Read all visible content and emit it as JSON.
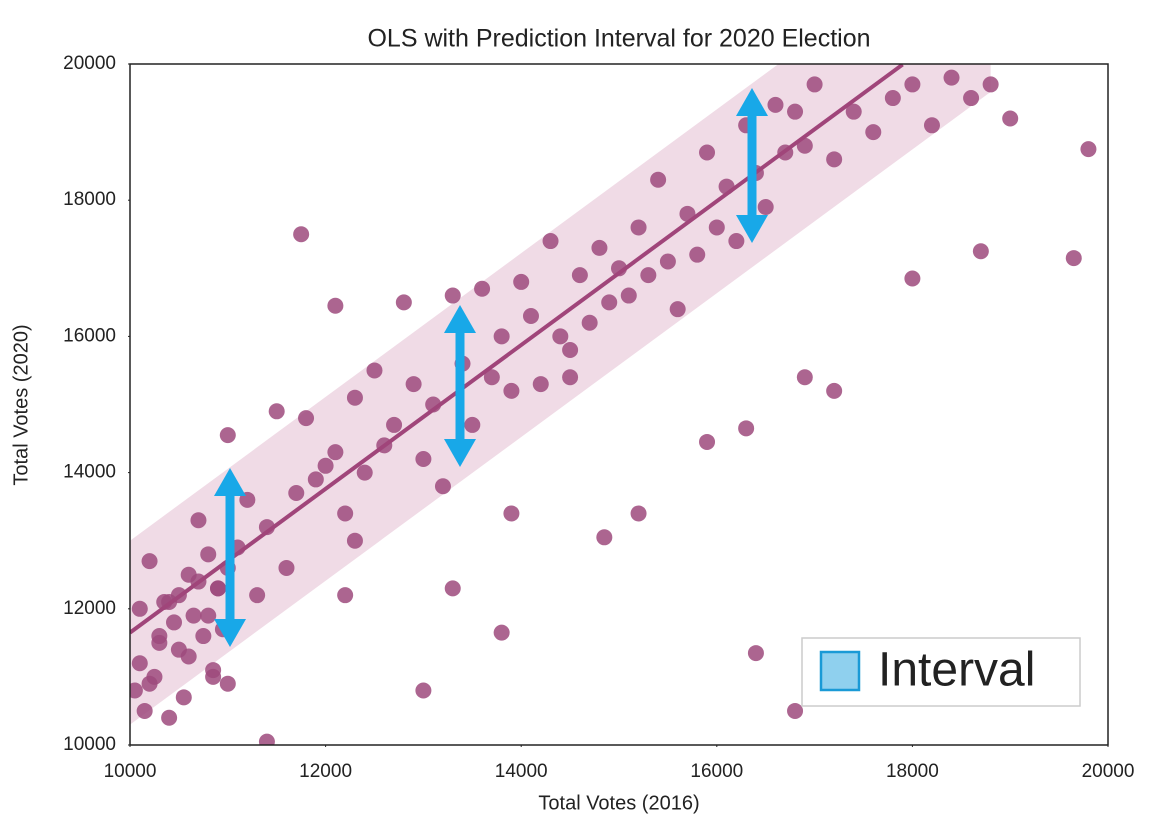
{
  "chart_data": {
    "type": "scatter",
    "title": "OLS with Prediction Interval for 2020 Election",
    "x_label": "Total Votes (2016)",
    "y_label": "Total Votes (2020)",
    "xlim": [
      10000,
      20000
    ],
    "ylim": [
      10000,
      20000
    ],
    "xticks": [
      10000,
      12000,
      14000,
      16000,
      18000,
      20000
    ],
    "yticks": [
      10000,
      12000,
      14000,
      16000,
      18000,
      20000
    ],
    "point_color": "#9e4a7c",
    "x": [
      10050,
      10100,
      10150,
      10200,
      10250,
      10300,
      10350,
      10400,
      10450,
      10500,
      10550,
      10600,
      10650,
      10700,
      10750,
      10800,
      10850,
      10900,
      10950,
      11000,
      10100,
      10200,
      10300,
      10400,
      10500,
      10600,
      10700,
      10800,
      10900,
      11000,
      11100,
      11200,
      11300,
      11400,
      11500,
      11600,
      11700,
      11800,
      11900,
      12000,
      12100,
      12200,
      12300,
      12400,
      12500,
      12600,
      12700,
      12800,
      12900,
      13000,
      13100,
      13200,
      13300,
      13400,
      13500,
      13600,
      13700,
      13800,
      13900,
      14000,
      14100,
      14200,
      14300,
      14400,
      14500,
      14600,
      14700,
      14800,
      14900,
      15000,
      15100,
      15200,
      15300,
      15400,
      15500,
      15600,
      15700,
      15800,
      15900,
      16000,
      16100,
      16200,
      16300,
      16400,
      16500,
      16600,
      16700,
      16800,
      16900,
      17000,
      17200,
      17400,
      17600,
      17800,
      18000,
      18200,
      18400,
      18600,
      18800,
      19000,
      11750,
      12100,
      13000,
      13300,
      13800,
      13900,
      14500,
      14850,
      15200,
      15900,
      16300,
      16400,
      16800,
      16900,
      17200,
      18000,
      18700,
      19650,
      19800,
      11400,
      12200,
      10850,
      11000,
      12300
    ],
    "y": [
      10800,
      11200,
      10500,
      12700,
      11000,
      11500,
      12100,
      10400,
      11800,
      12200,
      10700,
      11300,
      11900,
      12400,
      11600,
      12800,
      11100,
      12300,
      11700,
      12600,
      12000,
      10900,
      11600,
      12100,
      11400,
      12500,
      13300,
      11900,
      12300,
      14550,
      12900,
      13600,
      12200,
      13200,
      14900,
      12600,
      13700,
      14800,
      13900,
      14100,
      14300,
      13400,
      15100,
      14000,
      15500,
      14400,
      14700,
      16500,
      15300,
      14200,
      15000,
      13800,
      16600,
      15600,
      14700,
      16700,
      15400,
      16000,
      15200,
      16800,
      16300,
      15300,
      17400,
      16000,
      15400,
      16900,
      16200,
      17300,
      16500,
      17000,
      16600,
      17600,
      16900,
      18300,
      17100,
      16400,
      17800,
      17200,
      18700,
      17600,
      18200,
      17400,
      19100,
      18400,
      17900,
      19400,
      18700,
      19300,
      18800,
      19700,
      18600,
      19300,
      19000,
      19500,
      19700,
      19100,
      19800,
      19500,
      19700,
      19200,
      17500,
      16450,
      10800,
      12300,
      11650,
      13400,
      15800,
      13050,
      13400,
      14450,
      14650,
      11350,
      10500,
      15400,
      15200,
      16850,
      17250,
      17150,
      18750,
      10050,
      12200,
      11000,
      10900,
      13000
    ],
    "fit": {
      "color": "#a0457a",
      "x": [
        10000,
        17900
      ],
      "y": [
        11650,
        19992
      ]
    },
    "interval": {
      "color": "#f0dbe6",
      "x": [
        10000,
        18800
      ],
      "upper": [
        13000,
        22290
      ],
      "lower": [
        10300,
        19590
      ]
    },
    "legend": {
      "label": "Interval",
      "color": "#8fd0ee",
      "corner": "lower right"
    }
  }
}
